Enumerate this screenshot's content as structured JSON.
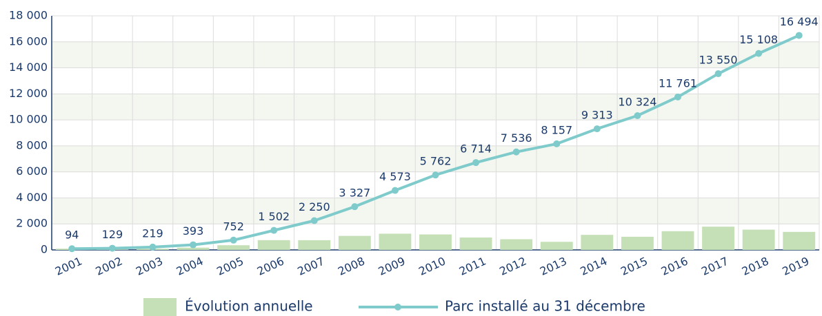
{
  "chart_data": {
    "type": "bar-line",
    "categories": [
      "2001",
      "2002",
      "2003",
      "2004",
      "2005",
      "2006",
      "2007",
      "2008",
      "2009",
      "2010",
      "2011",
      "2012",
      "2013",
      "2014",
      "2015",
      "2016",
      "2017",
      "2018",
      "2019"
    ],
    "series": [
      {
        "name": "Évolution annuelle",
        "type": "bar",
        "color": "#c5e0b6",
        "values": [
          94,
          35,
          90,
          174,
          359,
          750,
          748,
          1077,
          1246,
          1189,
          952,
          822,
          621,
          1156,
          1011,
          1437,
          1789,
          1558,
          1386
        ]
      },
      {
        "name": "Parc installé au 31 décembre",
        "type": "line",
        "color": "#7fcbcb",
        "values": [
          94,
          129,
          219,
          393,
          752,
          1502,
          2250,
          3327,
          4573,
          5762,
          6714,
          7536,
          8157,
          9313,
          10324,
          11761,
          13550,
          15108,
          16494
        ],
        "value_labels": [
          "94",
          "129",
          "219",
          "393",
          "752",
          "1 502",
          "2 250",
          "3 327",
          "4 573",
          "5 762",
          "6 714",
          "7 536",
          "8 157",
          "9 313",
          "10 324",
          "11 761",
          "13 550",
          "15 108",
          "16 494"
        ]
      }
    ],
    "ylim": [
      0,
      18000
    ],
    "yticks": [
      0,
      {
        "value": 2000,
        "label": "2 000"
      },
      {
        "value": 4000,
        "label": "4 000"
      },
      {
        "value": 6000,
        "label": "6 000"
      },
      {
        "value": 8000,
        "label": "8 000"
      },
      {
        "value": 10000,
        "label": "10 000"
      },
      {
        "value": 12000,
        "label": "12 000"
      },
      {
        "value": 14000,
        "label": "14 000"
      },
      {
        "value": 16000,
        "label": "16 000"
      },
      {
        "value": 18000,
        "label": "18 000"
      }
    ],
    "grid": true,
    "legend": "bottom"
  }
}
